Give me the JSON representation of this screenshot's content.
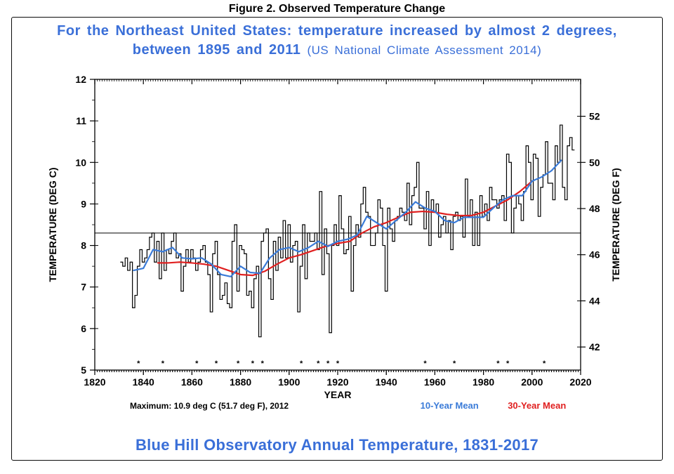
{
  "figure_title": "Figure 2. Observed Temperature Change",
  "headline_main": "For the Northeast United States: temperature increased by almost 2 degrees, between 1895 and 2011",
  "headline_sub": "(US National Climate Assessment 2014)",
  "footer": "Blue Hill Observatory Annual Temperature, 1831-2017",
  "chart": {
    "type": "line",
    "xlabel": "YEAR",
    "ylabel_left": "TEMPERATURE (DEG C)",
    "ylabel_right": "TEMPERATURE (DEG F)",
    "xlim": [
      1820,
      2020
    ],
    "xtick_step": 20,
    "ylim_left": [
      5,
      12
    ],
    "ytick_left_step": 1,
    "ylim_right": [
      40,
      54
    ],
    "ytick_right_step": 2,
    "background_color": "#ffffff",
    "axis_color": "#000000",
    "ref_line_y_c": 8.3,
    "ref_line_color": "#000000",
    "ref_line_width": 1,
    "series_annual": {
      "label": "Annual",
      "color": "#000000",
      "line_width": 1.2,
      "style": "step",
      "years": [
        1831,
        1832,
        1833,
        1834,
        1835,
        1836,
        1837,
        1838,
        1839,
        1840,
        1841,
        1842,
        1843,
        1844,
        1845,
        1846,
        1847,
        1848,
        1849,
        1850,
        1851,
        1852,
        1853,
        1854,
        1855,
        1856,
        1857,
        1858,
        1859,
        1860,
        1861,
        1862,
        1863,
        1864,
        1865,
        1866,
        1867,
        1868,
        1869,
        1870,
        1871,
        1872,
        1873,
        1874,
        1875,
        1876,
        1877,
        1878,
        1879,
        1880,
        1881,
        1882,
        1883,
        1884,
        1885,
        1886,
        1887,
        1888,
        1889,
        1890,
        1891,
        1892,
        1893,
        1894,
        1895,
        1896,
        1897,
        1898,
        1899,
        1900,
        1901,
        1902,
        1903,
        1904,
        1905,
        1906,
        1907,
        1908,
        1909,
        1910,
        1911,
        1912,
        1913,
        1914,
        1915,
        1916,
        1917,
        1918,
        1919,
        1920,
        1921,
        1922,
        1923,
        1924,
        1925,
        1926,
        1927,
        1928,
        1929,
        1930,
        1931,
        1932,
        1933,
        1934,
        1935,
        1936,
        1937,
        1938,
        1939,
        1940,
        1941,
        1942,
        1943,
        1944,
        1945,
        1946,
        1947,
        1948,
        1949,
        1950,
        1951,
        1952,
        1953,
        1954,
        1955,
        1956,
        1957,
        1958,
        1959,
        1960,
        1961,
        1962,
        1963,
        1964,
        1965,
        1966,
        1967,
        1968,
        1969,
        1970,
        1971,
        1972,
        1973,
        1974,
        1975,
        1976,
        1977,
        1978,
        1979,
        1980,
        1981,
        1982,
        1983,
        1984,
        1985,
        1986,
        1987,
        1988,
        1989,
        1990,
        1991,
        1992,
        1993,
        1994,
        1995,
        1996,
        1997,
        1998,
        1999,
        2000,
        2001,
        2002,
        2003,
        2004,
        2005,
        2006,
        2007,
        2008,
        2009,
        2010,
        2011,
        2012,
        2013,
        2014,
        2015,
        2016,
        2017
      ],
      "values_c": [
        7.6,
        7.5,
        7.7,
        7.4,
        7.6,
        6.5,
        6.8,
        7.5,
        7.9,
        7.6,
        7.7,
        7.9,
        8.2,
        8.3,
        7.6,
        8.1,
        7.2,
        8.3,
        7.4,
        7.9,
        7.8,
        8.1,
        8.3,
        7.7,
        7.8,
        6.9,
        7.5,
        7.9,
        7.6,
        7.9,
        7.7,
        7.4,
        7.6,
        7.9,
        8.0,
        7.6,
        7.3,
        6.4,
        7.8,
        8.1,
        7.3,
        6.7,
        6.8,
        7.1,
        6.6,
        6.5,
        8.1,
        8.5,
        6.9,
        8.0,
        7.9,
        7.8,
        6.8,
        6.9,
        6.5,
        7.2,
        7.5,
        5.8,
        8.1,
        8.3,
        8.4,
        7.2,
        6.7,
        8.1,
        7.4,
        8.2,
        7.7,
        8.6,
        7.7,
        8.5,
        7.6,
        8.0,
        8.1,
        6.4,
        7.5,
        8.5,
        7.2,
        8.3,
        8.1,
        8.1,
        8.3,
        7.9,
        9.3,
        7.3,
        8.4,
        7.8,
        5.9,
        8.0,
        8.5,
        8.0,
        9.2,
        8.4,
        7.8,
        7.9,
        8.7,
        6.9,
        8.0,
        8.5,
        8.2,
        9.0,
        9.4,
        8.8,
        8.7,
        8.0,
        8.0,
        8.3,
        9.1,
        8.9,
        8.0,
        6.9,
        8.9,
        8.4,
        8.1,
        8.6,
        8.7,
        8.9,
        8.8,
        8.6,
        9.5,
        8.5,
        9.2,
        9.4,
        10.0,
        8.9,
        8.9,
        8.4,
        9.3,
        8.0,
        9.1,
        8.8,
        9.0,
        8.2,
        8.5,
        8.7,
        8.3,
        8.6,
        7.9,
        8.7,
        8.8,
        8.6,
        8.7,
        8.2,
        9.6,
        8.7,
        9.1,
        8.0,
        8.8,
        8.0,
        9.2,
        8.7,
        9.0,
        8.6,
        9.4,
        9.1,
        9.1,
        8.9,
        9.1,
        9.2,
        8.6,
        10.2,
        10.0,
        8.3,
        8.9,
        9.2,
        9.0,
        8.6,
        9.3,
        10.4,
        10.0,
        9.1,
        10.2,
        10.1,
        8.7,
        9.4,
        9.7,
        10.5,
        9.5,
        9.5,
        9.1,
        10.4,
        10.0,
        10.9,
        9.4,
        9.1,
        10.4,
        10.6,
        10.3
      ]
    },
    "series_10yr": {
      "label": "10-Year Mean",
      "legend_label": "10-Year Mean",
      "color": "#3a7bd8",
      "line_width": 2.2,
      "years": [
        1836,
        1840,
        1844,
        1848,
        1852,
        1856,
        1860,
        1864,
        1868,
        1872,
        1876,
        1880,
        1884,
        1888,
        1892,
        1896,
        1900,
        1904,
        1908,
        1912,
        1916,
        1920,
        1924,
        1928,
        1932,
        1936,
        1940,
        1944,
        1948,
        1952,
        1956,
        1960,
        1964,
        1968,
        1972,
        1976,
        1980,
        1984,
        1988,
        1992,
        1996,
        2000,
        2004,
        2008,
        2012
      ],
      "values_c": [
        7.4,
        7.45,
        7.9,
        7.85,
        7.95,
        7.7,
        7.68,
        7.7,
        7.55,
        7.3,
        7.25,
        7.5,
        7.35,
        7.33,
        7.7,
        7.9,
        7.95,
        7.85,
        7.95,
        8.1,
        7.98,
        8.1,
        8.15,
        8.25,
        8.7,
        8.55,
        8.4,
        8.6,
        8.8,
        9.05,
        8.9,
        8.82,
        8.6,
        8.55,
        8.68,
        8.68,
        8.68,
        8.9,
        9.1,
        9.2,
        9.2,
        9.55,
        9.65,
        9.8,
        10.05
      ]
    },
    "series_30yr": {
      "label": "30-Year Mean",
      "legend_label": "30-Year Mean",
      "color": "#e02020",
      "line_width": 2.2,
      "years": [
        1846,
        1850,
        1855,
        1860,
        1865,
        1870,
        1875,
        1880,
        1885,
        1890,
        1895,
        1900,
        1905,
        1910,
        1915,
        1920,
        1925,
        1930,
        1935,
        1940,
        1945,
        1950,
        1955,
        1960,
        1965,
        1970,
        1975,
        1980,
        1985,
        1990,
        1995,
        2000
      ],
      "values_c": [
        7.58,
        7.58,
        7.6,
        7.58,
        7.55,
        7.5,
        7.4,
        7.3,
        7.28,
        7.38,
        7.55,
        7.7,
        7.78,
        7.88,
        7.98,
        8.05,
        8.1,
        8.3,
        8.45,
        8.55,
        8.68,
        8.8,
        8.82,
        8.8,
        8.75,
        8.72,
        8.72,
        8.8,
        8.95,
        9.1,
        9.3,
        9.55
      ]
    },
    "star_years": [
      1838,
      1848,
      1862,
      1870,
      1879,
      1885,
      1889,
      1905,
      1912,
      1916,
      1920,
      1956,
      1968,
      1986,
      1990,
      2005
    ],
    "maximum_text": "Maximum:    10.9 deg C (51.7 deg F), 2012"
  }
}
